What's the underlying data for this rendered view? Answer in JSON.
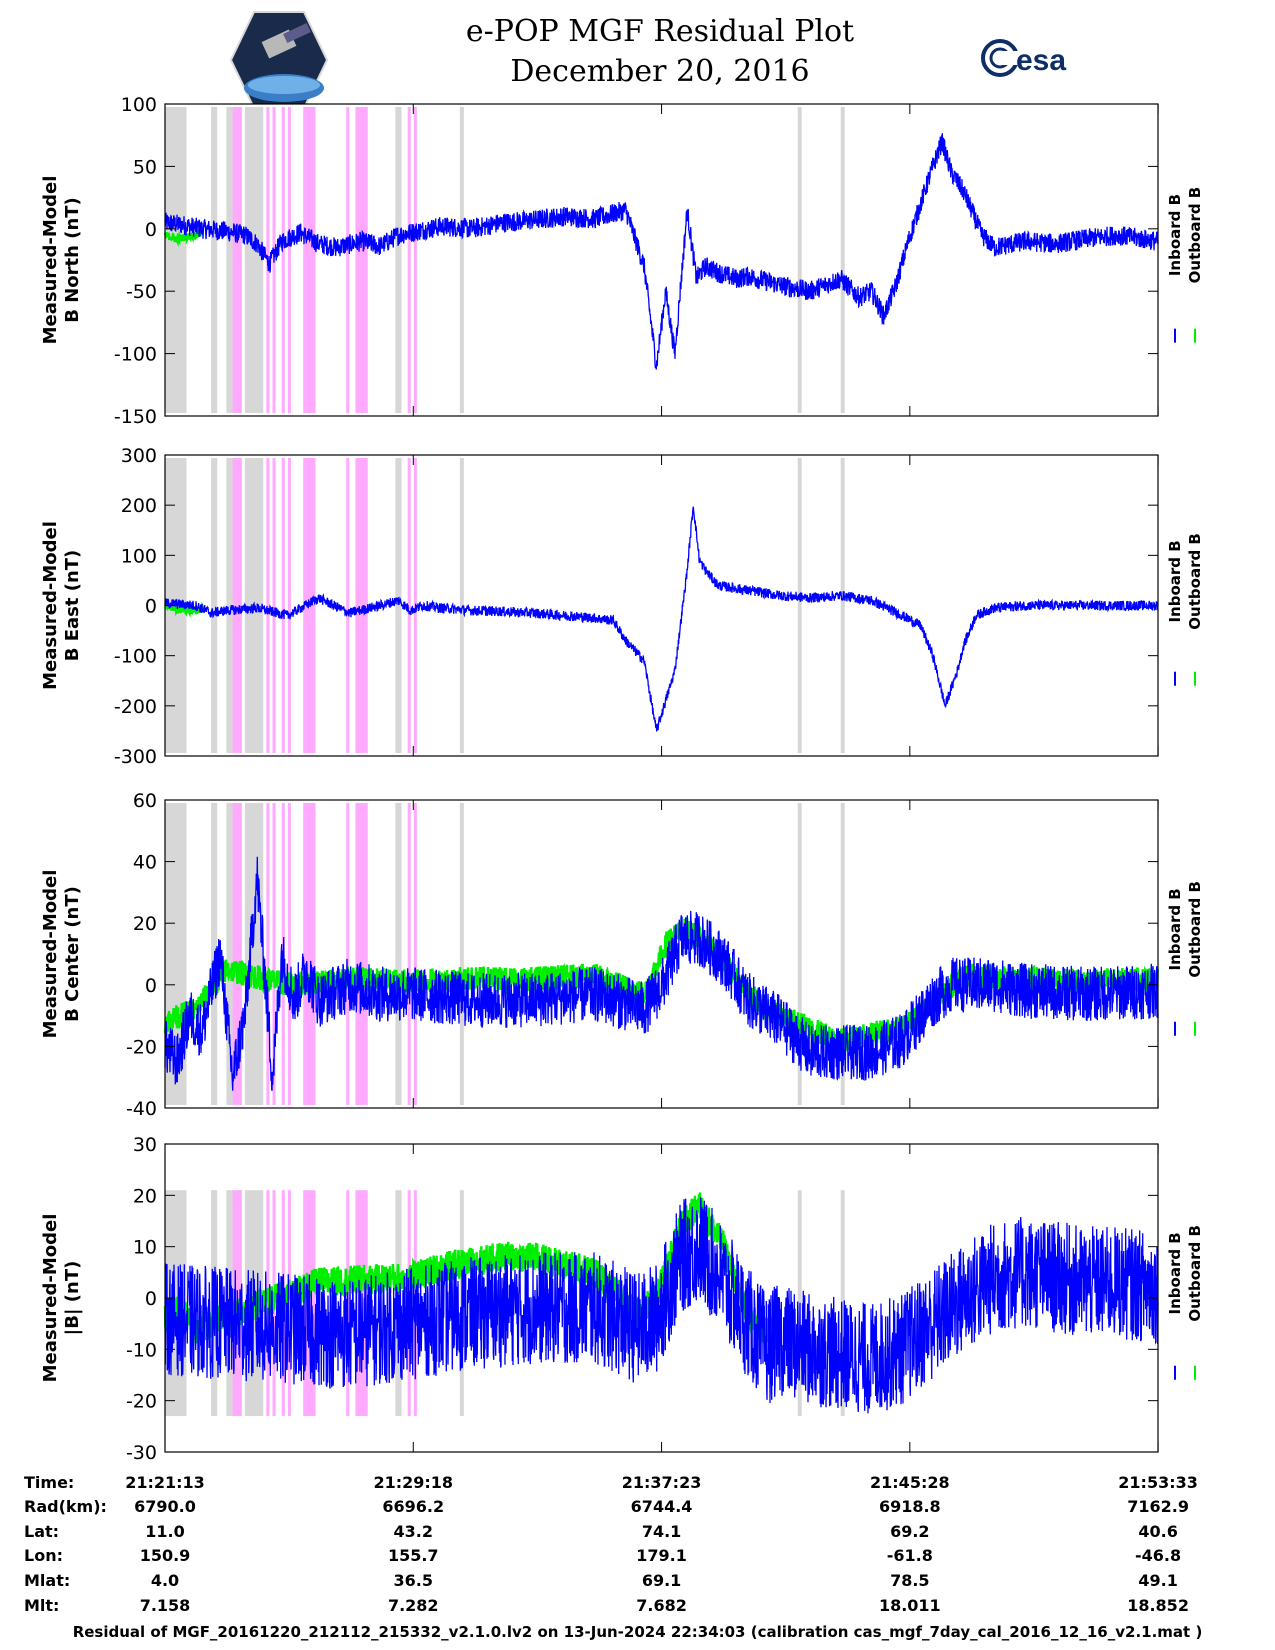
{
  "title": {
    "line1": "e-POP MGF Residual Plot",
    "line2": "December 20, 2016"
  },
  "logos": {
    "left": "cassiope-mission-logo",
    "right_text": "esa"
  },
  "legend": {
    "inboard": "Inboard B",
    "outboard": "Outboard B"
  },
  "colors": {
    "inboard": "#0000ff",
    "outboard": "#00ee00",
    "gray_band": "#d7d7d7",
    "pink_band": "#ffaaff"
  },
  "footer": "Residual of MGF_20161220_212112_215332_v2.1.0.lv2 on 13-Jun-2024 22:34:03 (calibration cas_mgf_7day_cal_2016_12_16_v2.1.mat )",
  "ephemeris": {
    "labels": [
      "Time:",
      "Rad(km):",
      "Lat:",
      "Lon:",
      "Mlat:",
      "Mlt:"
    ],
    "columns": [
      [
        "21:21:13",
        "6790.0",
        "11.0",
        "150.9",
        "4.0",
        "7.158"
      ],
      [
        "21:29:18",
        "6696.2",
        "43.2",
        "155.7",
        "36.5",
        "7.282"
      ],
      [
        "21:37:23",
        "6744.4",
        "74.1",
        "179.1",
        "69.1",
        "7.682"
      ],
      [
        "21:45:28",
        "6918.8",
        "69.2",
        "-61.8",
        "78.5",
        "18.011"
      ],
      [
        "21:53:33",
        "7162.9",
        "40.6",
        "-46.8",
        "49.1",
        "18.852"
      ]
    ]
  },
  "chart_data": [
    {
      "type": "line",
      "ylabel": [
        "Measured-Model",
        "B North (nT)"
      ],
      "ylim": [
        -150,
        100
      ],
      "yticks": [
        -150,
        -100,
        -50,
        0,
        50,
        100
      ],
      "xlim_min": [
        0,
        32.33
      ],
      "xticks_min": [
        0,
        8.083,
        16.167,
        24.25,
        32.333
      ],
      "series": [
        {
          "name": "Inboard B",
          "x": [
            0,
            0.6,
            1.2,
            2,
            2.6,
            3,
            3.4,
            3.8,
            4.4,
            5,
            5.6,
            6.4,
            7,
            7.6,
            8.2,
            9,
            10,
            11,
            12,
            13,
            14,
            15,
            15.6,
            16,
            16.3,
            16.6,
            17,
            17.3,
            17.6,
            18,
            18.6,
            19,
            20,
            21,
            22,
            22.6,
            23,
            23.4,
            23.8,
            24.2,
            24.6,
            25,
            25.3,
            25.6,
            26,
            26.6,
            27,
            28,
            29,
            30,
            31,
            32.33
          ],
          "y": [
            5,
            3,
            0,
            -2,
            -5,
            -12,
            -28,
            -10,
            -3,
            -12,
            -15,
            -10,
            -14,
            -5,
            -2,
            2,
            0,
            5,
            7,
            10,
            8,
            15,
            -30,
            -110,
            -50,
            -100,
            15,
            -40,
            -30,
            -35,
            -40,
            -38,
            -45,
            -50,
            -40,
            -55,
            -50,
            -70,
            -45,
            -10,
            20,
            50,
            70,
            45,
            30,
            -5,
            -15,
            -10,
            -12,
            -8,
            -5,
            -10
          ],
          "amp": 8
        },
        {
          "name": "Outboard B",
          "x": [
            0,
            0.4,
            0.8,
            1.2
          ],
          "y": [
            -5,
            -8,
            -6,
            -3
          ],
          "amp": 3
        }
      ]
    },
    {
      "type": "line",
      "ylabel": [
        "Measured-Model",
        "B East (nT)"
      ],
      "ylim": [
        -300,
        300
      ],
      "yticks": [
        -300,
        -200,
        -100,
        0,
        100,
        200,
        300
      ],
      "xlim_min": [
        0,
        32.33
      ],
      "xticks_min": [
        0,
        8.083,
        16.167,
        24.25,
        32.333
      ],
      "series": [
        {
          "name": "Inboard B",
          "x": [
            0,
            1,
            1.5,
            2,
            3,
            4,
            5,
            6,
            7,
            7.6,
            8,
            8.4,
            9,
            10,
            11,
            12,
            13,
            14,
            14.6,
            15,
            15.6,
            16,
            16.6,
            17,
            17.2,
            17.4,
            17.6,
            18,
            19,
            20,
            21,
            22,
            23,
            24,
            24.6,
            25,
            25.4,
            25.8,
            26,
            26.4,
            27,
            28,
            29,
            30,
            31,
            32.33
          ],
          "y": [
            5,
            0,
            -15,
            -10,
            -5,
            -20,
            15,
            -15,
            0,
            10,
            -10,
            0,
            -5,
            -10,
            -12,
            -15,
            -20,
            -25,
            -30,
            -70,
            -110,
            -250,
            -130,
            70,
            200,
            90,
            70,
            40,
            30,
            20,
            15,
            20,
            10,
            -20,
            -40,
            -100,
            -200,
            -130,
            -80,
            -20,
            -5,
            0,
            0,
            0,
            0,
            0
          ],
          "amp": 10
        },
        {
          "name": "Outboard B",
          "x": [
            0,
            0.5,
            1,
            1.3
          ],
          "y": [
            0,
            -10,
            -12,
            -5
          ],
          "amp": 6
        }
      ]
    },
    {
      "type": "line",
      "ylabel": [
        "Measured-Model",
        "B Center (nT)"
      ],
      "ylim": [
        -40,
        60
      ],
      "yticks": [
        -40,
        -20,
        0,
        20,
        40,
        60
      ],
      "xlim_min": [
        0,
        32.33
      ],
      "xticks_min": [
        0,
        8.083,
        16.167,
        24.25,
        32.333
      ],
      "series": [
        {
          "name": "Inboard B",
          "x": [
            0,
            0.4,
            0.8,
            1.2,
            1.8,
            2.2,
            2.6,
            3,
            3.2,
            3.5,
            3.8,
            4.2,
            4.6,
            5,
            6,
            7,
            8,
            10,
            12,
            14,
            15.6,
            16.2,
            16.8,
            17.4,
            18.2,
            19,
            20,
            21,
            22,
            23,
            24,
            25,
            25.6,
            26,
            27,
            28,
            30,
            32.33
          ],
          "y": [
            -20,
            -25,
            -10,
            -15,
            10,
            -30,
            -10,
            35,
            10,
            -30,
            10,
            -5,
            5,
            -5,
            0,
            -3,
            -3,
            -5,
            -5,
            -3,
            -8,
            0,
            15,
            15,
            8,
            -5,
            -12,
            -22,
            -22,
            -22,
            -18,
            -5,
            0,
            0,
            0,
            -2,
            -3,
            -2
          ],
          "amp": 9
        },
        {
          "name": "Outboard B",
          "x": [
            0,
            1,
            2,
            4,
            6,
            8,
            10,
            12,
            14,
            15.6,
            16.4,
            17,
            18,
            19,
            20,
            22,
            24,
            26,
            28,
            30,
            32.33
          ],
          "y": [
            -12,
            -8,
            5,
            0,
            2,
            1,
            2,
            2,
            3,
            -3,
            15,
            18,
            10,
            -3,
            -10,
            -18,
            -14,
            3,
            2,
            1,
            2
          ],
          "amp": 4
        }
      ]
    },
    {
      "type": "line",
      "ylabel": [
        "Measured-Model",
        "|B| (nT)"
      ],
      "ylim": [
        -30,
        30
      ],
      "yticks": [
        -30,
        -20,
        -10,
        0,
        10,
        20,
        30
      ],
      "xlim_min": [
        0,
        32.33
      ],
      "xticks_min": [
        0,
        8.083,
        16.167,
        24.25,
        32.333
      ],
      "series": [
        {
          "name": "Inboard B",
          "x": [
            0,
            2,
            4,
            6,
            7,
            8,
            10,
            12,
            14,
            15.4,
            16,
            16.8,
            17.4,
            18,
            19,
            19.6,
            20,
            21,
            22,
            23,
            24,
            25,
            26,
            27,
            28,
            29,
            30,
            31,
            32.33
          ],
          "y": [
            -4,
            -5,
            -6,
            -7,
            -6,
            -5,
            -3,
            -2,
            -2,
            -6,
            -4,
            8,
            10,
            5,
            -5,
            -10,
            -8,
            -10,
            -11,
            -12,
            -10,
            -5,
            0,
            4,
            5,
            4,
            3,
            3,
            2
          ],
          "amp": 11
        },
        {
          "name": "Outboard B",
          "x": [
            0,
            0.5,
            1,
            5,
            8,
            9,
            10,
            11,
            12,
            14,
            15.4,
            16,
            16.8,
            17.4,
            18.2,
            19,
            20
          ],
          "y": [
            -4,
            -2,
            -6,
            3,
            4,
            6,
            7,
            8,
            8,
            5,
            -3,
            0,
            14,
            18,
            10,
            -4,
            -8
          ],
          "amp": 3
        }
      ]
    }
  ],
  "bands": {
    "gray_min": [
      [
        0,
        0.7
      ],
      [
        1.5,
        1.7
      ],
      [
        2.0,
        2.5
      ],
      [
        2.6,
        3.2
      ],
      [
        9.6,
        9.7
      ],
      [
        20.6,
        20.7
      ],
      [
        22.0,
        22.1
      ],
      [
        7.5,
        7.7
      ]
    ],
    "pink_min": [
      [
        2.2,
        2.5
      ],
      [
        3.3,
        3.4
      ],
      [
        3.5,
        3.6
      ],
      [
        3.8,
        3.9
      ],
      [
        4.0,
        4.1
      ],
      [
        4.5,
        4.9
      ],
      [
        5.9,
        6.0
      ],
      [
        6.2,
        6.6
      ],
      [
        7.9,
        8.0
      ],
      [
        8.1,
        8.2
      ]
    ]
  }
}
